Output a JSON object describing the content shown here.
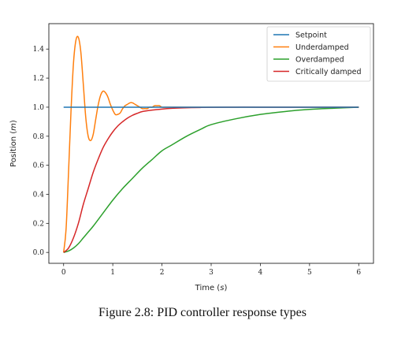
{
  "caption": "Figure 2.8: PID controller response types",
  "chart_data": {
    "type": "line",
    "xlabel_text": "Time",
    "xlabel_unit": "s",
    "ylabel_text": "Position",
    "ylabel_unit": "m",
    "xlim": [
      -0.3,
      6.3
    ],
    "ylim": [
      -0.075,
      1.575
    ],
    "x_ticks": [
      0,
      1,
      2,
      3,
      4,
      5,
      6
    ],
    "y_ticks": [
      0.0,
      0.2,
      0.4,
      0.6,
      0.8,
      1.0,
      1.2,
      1.4
    ],
    "grid": false,
    "legend_position": "top-right",
    "series": [
      {
        "name": "Setpoint",
        "color": "#1f77b4",
        "x": [
          0,
          6
        ],
        "y": [
          1.0,
          1.0
        ]
      },
      {
        "name": "Underdamped",
        "color": "#ff7f0e",
        "x": [
          0,
          0.05,
          0.1,
          0.15,
          0.2,
          0.25,
          0.3,
          0.35,
          0.4,
          0.45,
          0.5,
          0.55,
          0.6,
          0.65,
          0.7,
          0.75,
          0.8,
          0.85,
          0.9,
          0.95,
          1.0,
          1.05,
          1.1,
          1.15,
          1.2,
          1.25,
          1.3,
          1.35,
          1.4,
          1.45,
          1.5,
          1.55,
          1.6,
          1.65,
          1.7,
          1.75,
          1.8,
          1.85,
          1.9,
          1.95,
          2.0,
          2.1,
          2.2,
          2.3,
          2.4,
          2.6,
          2.8,
          3.0,
          3.5,
          4.0,
          4.5,
          5.0,
          5.5,
          6.0
        ],
        "y": [
          0.0,
          0.16,
          0.55,
          0.97,
          1.3,
          1.46,
          1.48,
          1.38,
          1.16,
          0.93,
          0.8,
          0.77,
          0.81,
          0.91,
          1.01,
          1.08,
          1.11,
          1.1,
          1.07,
          1.02,
          0.98,
          0.95,
          0.95,
          0.96,
          0.99,
          1.01,
          1.02,
          1.03,
          1.03,
          1.02,
          1.01,
          1.0,
          0.99,
          0.99,
          0.99,
          1.0,
          1.0,
          1.01,
          1.01,
          1.01,
          1.0,
          1.0,
          1.0,
          1.0,
          1.0,
          1.0,
          1.0,
          1.0,
          1.0,
          1.0,
          1.0,
          1.0,
          1.0,
          1.0
        ]
      },
      {
        "name": "Overdamped",
        "color": "#2ca02c",
        "x": [
          0,
          0.1,
          0.2,
          0.3,
          0.4,
          0.5,
          0.6,
          0.8,
          1.0,
          1.2,
          1.4,
          1.6,
          1.8,
          2.0,
          2.2,
          2.5,
          2.8,
          3.0,
          3.5,
          4.0,
          4.5,
          5.0,
          5.5,
          6.0
        ],
        "y": [
          0.0,
          0.01,
          0.03,
          0.06,
          0.1,
          0.14,
          0.18,
          0.27,
          0.36,
          0.44,
          0.51,
          0.58,
          0.64,
          0.7,
          0.74,
          0.8,
          0.85,
          0.88,
          0.92,
          0.95,
          0.97,
          0.985,
          0.993,
          1.0
        ]
      },
      {
        "name": "Critically damped",
        "color": "#d62728",
        "x": [
          0,
          0.1,
          0.2,
          0.3,
          0.4,
          0.5,
          0.6,
          0.7,
          0.8,
          0.9,
          1.0,
          1.1,
          1.2,
          1.3,
          1.4,
          1.5,
          1.6,
          1.8,
          2.0,
          2.2,
          2.4,
          2.6,
          2.8,
          3.0,
          3.5,
          4.0,
          5.0,
          6.0
        ],
        "y": [
          0.0,
          0.03,
          0.1,
          0.2,
          0.33,
          0.44,
          0.55,
          0.64,
          0.72,
          0.78,
          0.83,
          0.87,
          0.9,
          0.925,
          0.944,
          0.958,
          0.97,
          0.98,
          0.987,
          0.992,
          0.995,
          0.997,
          0.998,
          0.999,
          1.0,
          1.0,
          1.0,
          1.0
        ]
      }
    ]
  }
}
